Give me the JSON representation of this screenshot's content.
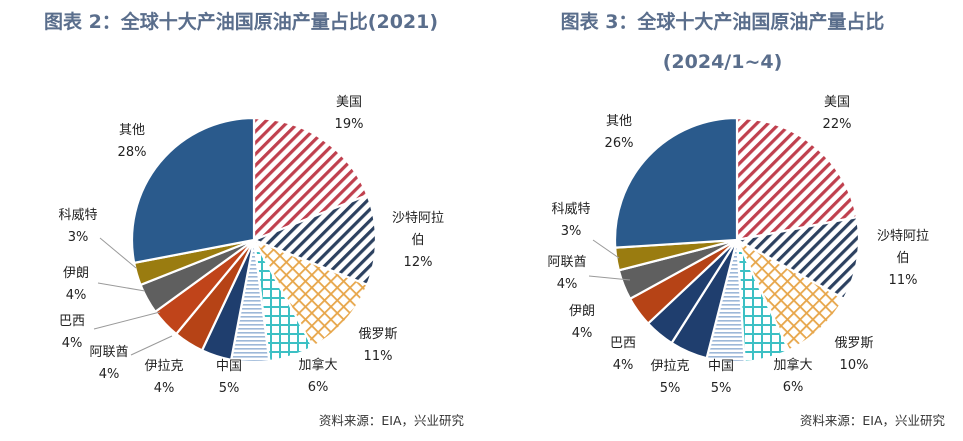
{
  "chart_data": [
    {
      "type": "pie",
      "title": "图表 2：全球十大产油国原油产量占比(2021)",
      "categories": [
        "美国",
        "沙特阿拉伯",
        "俄罗斯",
        "加拿大",
        "中国",
        "伊拉克",
        "阿联酋",
        "巴西",
        "伊朗",
        "科威特",
        "其他"
      ],
      "display_labels": [
        "美国",
        "沙特阿拉\n伯",
        "俄罗斯",
        "加拿大",
        "中国",
        "伊拉克",
        "阿联酋",
        "巴西",
        "伊朗",
        "科威特",
        "其他"
      ],
      "values": [
        19,
        12,
        11,
        6,
        5,
        4,
        4,
        4,
        4,
        3,
        28
      ],
      "value_labels": [
        "19%",
        "12%",
        "11%",
        "6%",
        "5%",
        "4%",
        "4%",
        "4%",
        "4%",
        "3%",
        "28%"
      ],
      "source": "资料来源：EIA，兴业研究"
    },
    {
      "type": "pie",
      "title": "图表 3：全球十大产油国原油产量占比",
      "subtitle": "(2024/1~4)",
      "categories": [
        "美国",
        "沙特阿拉伯",
        "俄罗斯",
        "加拿大",
        "中国",
        "伊拉克",
        "巴西",
        "伊朗",
        "阿联酋",
        "科威特",
        "其他"
      ],
      "display_labels": [
        "美国",
        "沙特阿拉\n伯",
        "俄罗斯",
        "加拿大",
        "中国",
        "伊拉克",
        "巴西",
        "伊朗",
        "阿联酋",
        "科威特",
        "其他"
      ],
      "values": [
        22,
        11,
        10,
        6,
        5,
        5,
        4,
        4,
        4,
        3,
        26
      ],
      "value_labels": [
        "22%",
        "11%",
        "10%",
        "6%",
        "5%",
        "5%",
        "4%",
        "4%",
        "4%",
        "3%",
        "26%"
      ],
      "source": "资料来源：EIA，兴业研究"
    }
  ],
  "colors": {
    "title": "#5a6e8c",
    "us": "#c0404e",
    "saudi": "#2c4160",
    "russia": "#e7a64a",
    "canada": "#3cc0c4",
    "china": "#9db8d8",
    "iraq": "#1f3e6e",
    "orange": "#c24a14",
    "gray": "#5f5f5f",
    "olive": "#9a7c10",
    "other": "#2a5a8c"
  }
}
